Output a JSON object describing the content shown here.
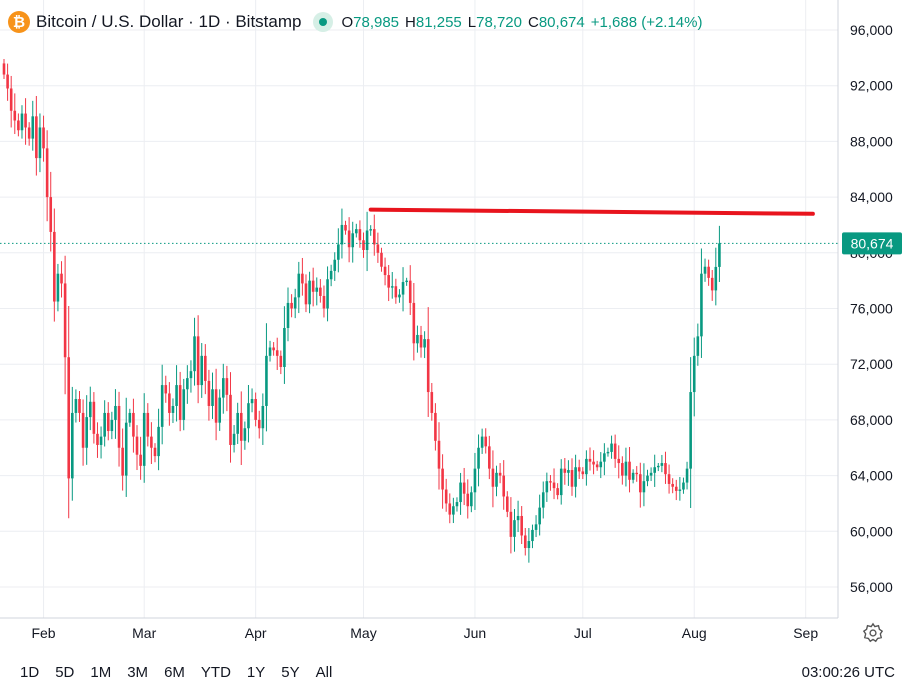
{
  "header": {
    "symbol_icon": "bitcoin-icon",
    "title": "Bitcoin / U.S. Dollar · 1D · Bitstamp",
    "open_label": "O",
    "open": "78,985",
    "high_label": "H",
    "high": "81,255",
    "low_label": "L",
    "low": "78,720",
    "close_label": "C",
    "close": "80,674",
    "change": "+1,688 (+2.14%)"
  },
  "price_tag": "80,674",
  "bottom_bar": {
    "ranges": [
      "1D",
      "5D",
      "1M",
      "3M",
      "6M",
      "YTD",
      "1Y",
      "5Y",
      "All"
    ],
    "clock": "03:00:26 UTC"
  },
  "colors": {
    "up": "#089981",
    "down": "#f23645",
    "annotation": "#e8141d",
    "tag": "#089981"
  },
  "chart_data": {
    "type": "candlestick",
    "x_unit": "day index from first visible candle (Jan 21)",
    "y_axis": {
      "ticks": [
        56000,
        60000,
        64000,
        68000,
        72000,
        76000,
        80000,
        84000,
        88000,
        92000,
        96000
      ],
      "tick_labels": [
        "56,000",
        "60,000",
        "64,000",
        "68,000",
        "72,000",
        "76,000",
        "80,000",
        "84,000",
        "88,000",
        "92,000",
        "96,000"
      ],
      "range": [
        54000,
        98000
      ],
      "position": "right"
    },
    "x_axis": {
      "labels": [
        {
          "text": "Feb",
          "day": 11
        },
        {
          "text": "Mar",
          "day": 39
        },
        {
          "text": "Apr",
          "day": 70
        },
        {
          "text": "May",
          "day": 100
        },
        {
          "text": "Jun",
          "day": 131
        },
        {
          "text": "Jul",
          "day": 161
        },
        {
          "text": "Aug",
          "day": 192
        },
        {
          "text": "Sep",
          "day": 223
        }
      ]
    },
    "grid": true,
    "current_price": 80674,
    "annotation_line": {
      "from": {
        "day": 102,
        "price": 83100
      },
      "to": {
        "day": 225,
        "price": 82800
      }
    },
    "closes": [
      92800,
      91800,
      90200,
      89500,
      88800,
      90000,
      89000,
      88200,
      89800,
      86800,
      89000,
      87500,
      84000,
      81500,
      76500,
      78500,
      77800,
      72500,
      63800,
      68500,
      69500,
      68500,
      66000,
      68200,
      69300,
      67000,
      66200,
      66800,
      68500,
      67200,
      68000,
      69000,
      66000,
      64000,
      67800,
      68500,
      66800,
      65500,
      64700,
      68500,
      66800,
      66000,
      65400,
      67500,
      70500,
      69900,
      68500,
      69000,
      70500,
      68000,
      70200,
      71000,
      71500,
      74000,
      70500,
      72600,
      70800,
      69000,
      70200,
      67800,
      69600,
      71000,
      69800,
      66200,
      67000,
      68500,
      66500,
      67400,
      69200,
      69500,
      68000,
      67400,
      69000,
      72600,
      73200,
      73000,
      72600,
      71800,
      74600,
      76400,
      76000,
      76800,
      78500,
      77800,
      76300,
      78000,
      77200,
      77500,
      76900,
      76000,
      78100,
      78700,
      79500,
      80600,
      82000,
      81600,
      80400,
      81400,
      81700,
      80900,
      80200,
      81600,
      81700,
      80600,
      80000,
      79000,
      78400,
      77500,
      77600,
      76800,
      77000,
      77900,
      78000,
      76400,
      73500,
      74100,
      73200,
      73800,
      70000,
      68500,
      66500,
      64500,
      63000,
      62000,
      61200,
      61800,
      62100,
      63500,
      62700,
      61800,
      62800,
      64500,
      66000,
      66800,
      66100,
      64500,
      63200,
      64200,
      64000,
      62500,
      61400,
      59600,
      60800,
      61100,
      59700,
      58800,
      59300,
      60100,
      60500,
      61700,
      62800,
      63600,
      63500,
      63100,
      62600,
      64500,
      64200,
      64400,
      63200,
      64600,
      64300,
      64100,
      65200,
      65000,
      64800,
      64600,
      65000,
      65600,
      65700,
      66300,
      65200,
      64900,
      64000,
      65000,
      63700,
      64200,
      64100,
      62800,
      63600,
      64000,
      64200,
      64600,
      64700,
      64900,
      64100,
      63400,
      63200,
      62900,
      63000,
      63500,
      64500,
      70000,
      72600,
      74000,
      78500,
      79000,
      78200,
      77300,
      78985,
      80674
    ]
  }
}
